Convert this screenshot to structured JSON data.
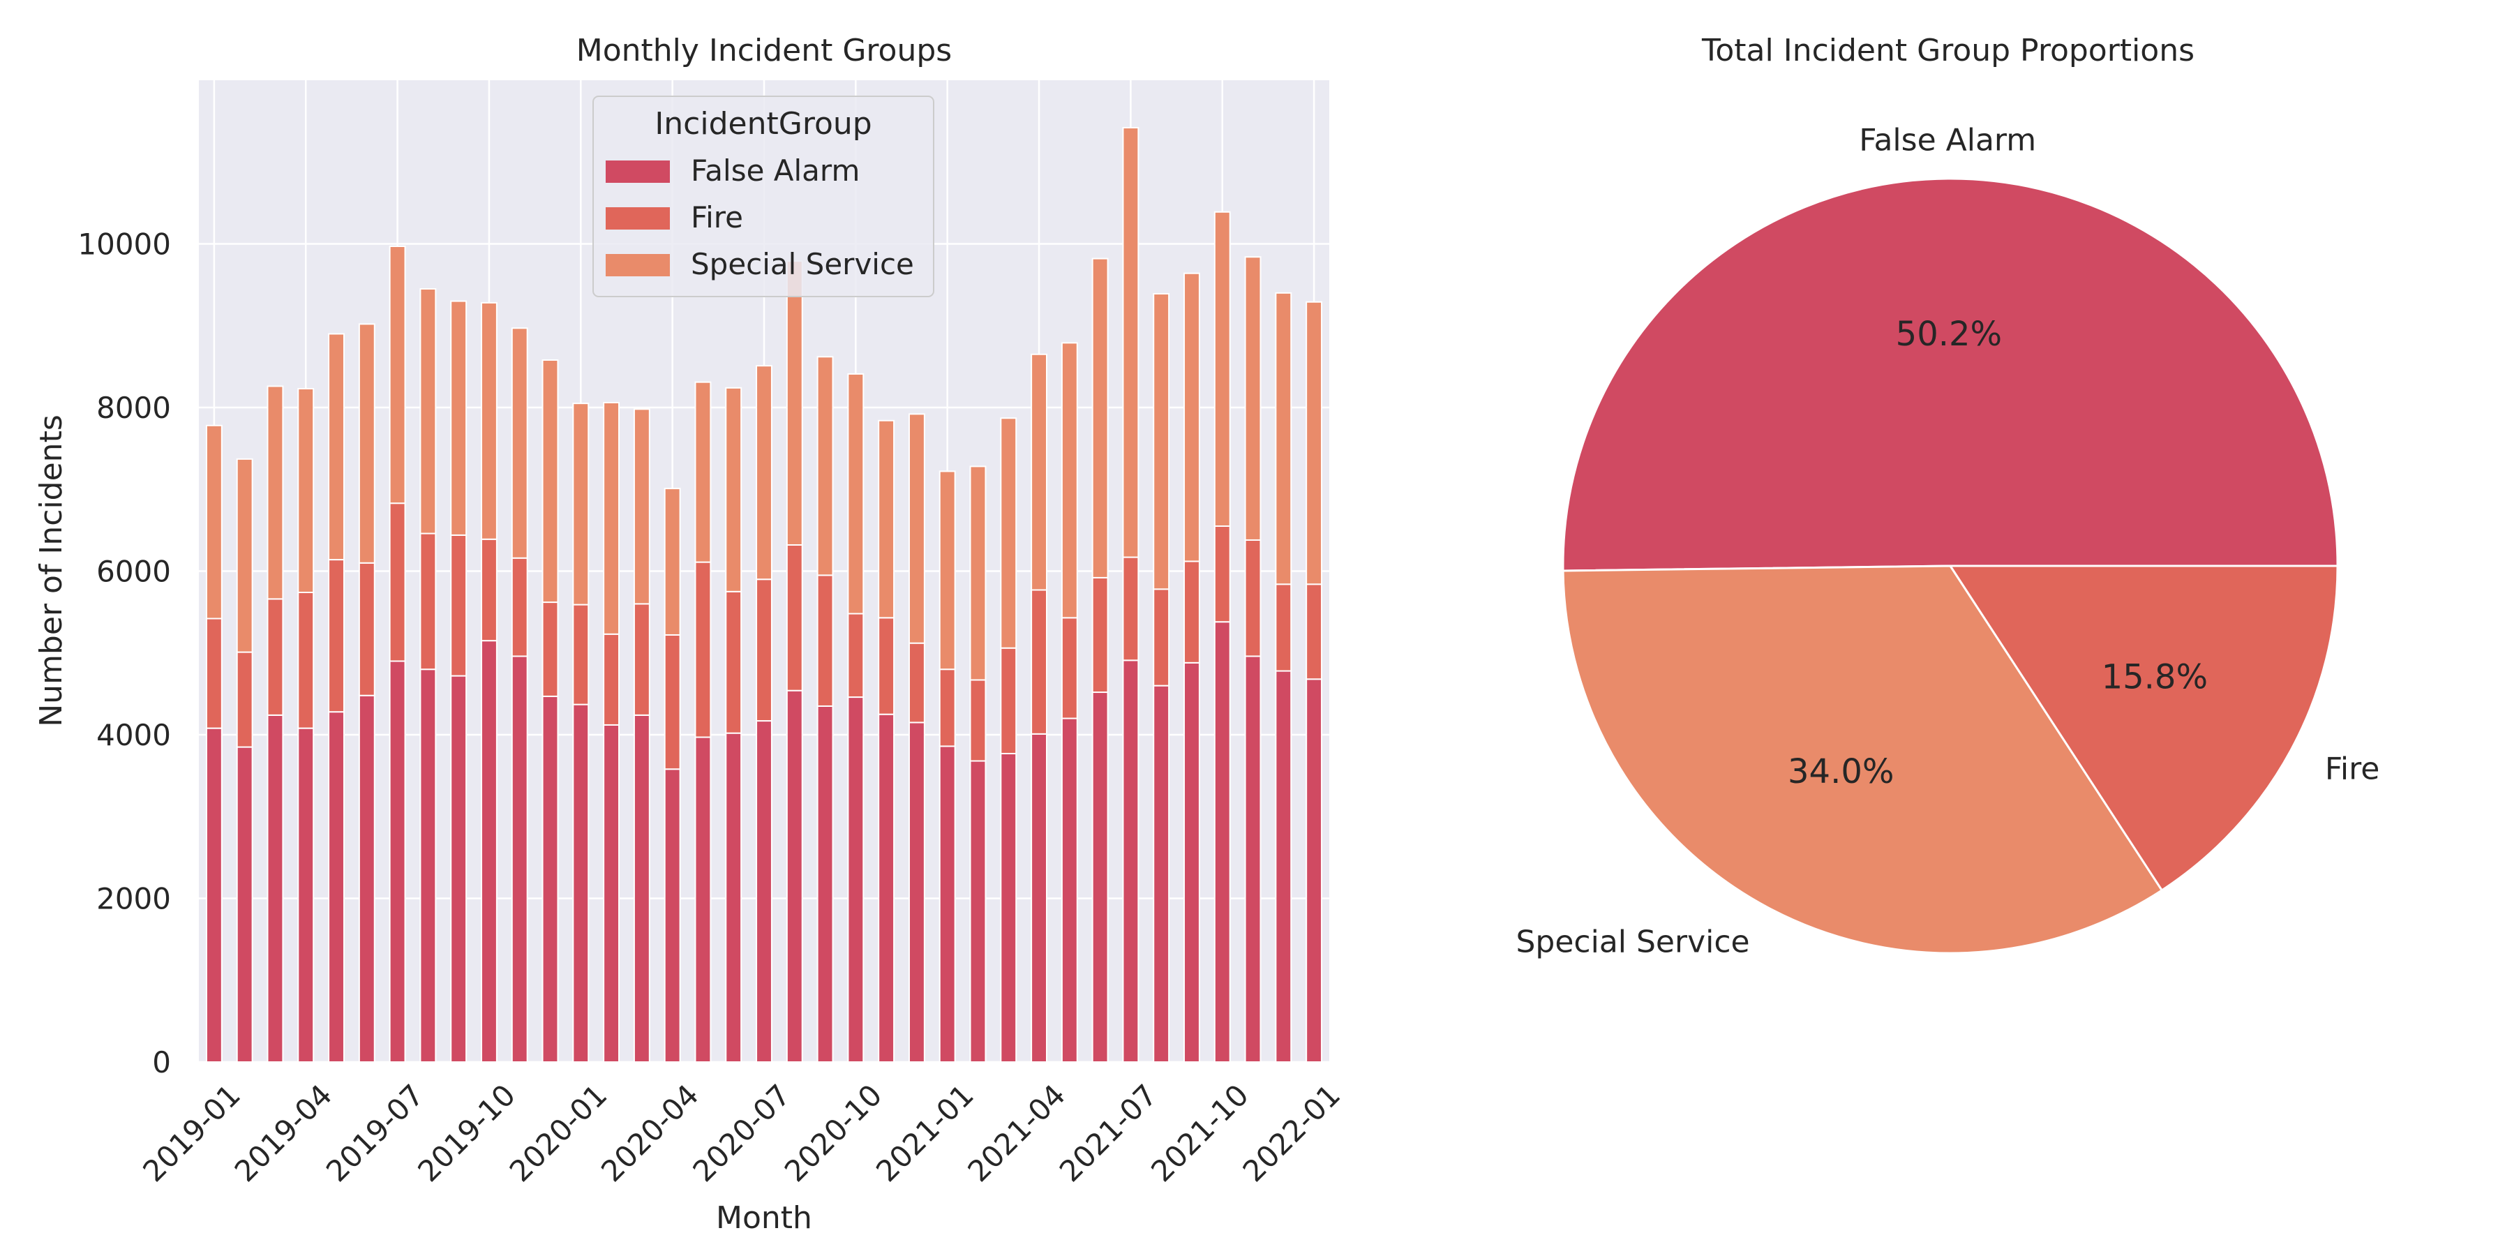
{
  "chart_data": [
    {
      "type": "bar",
      "stacked": true,
      "title": "Monthly Incident Groups",
      "xlabel": "Month",
      "ylabel": "Number of Incidents",
      "ylim": [
        0,
        12000
      ],
      "yticks": [
        0,
        2000,
        4000,
        6000,
        8000,
        10000
      ],
      "grid": true,
      "legend": {
        "title": "IncidentGroup",
        "placement": "top-center"
      },
      "categories": [
        "2019-01",
        "2019-02",
        "2019-03",
        "2019-04",
        "2019-05",
        "2019-06",
        "2019-07",
        "2019-08",
        "2019-09",
        "2019-10",
        "2019-11",
        "2019-12",
        "2020-01",
        "2020-02",
        "2020-03",
        "2020-04",
        "2020-05",
        "2020-06",
        "2020-07",
        "2020-08",
        "2020-09",
        "2020-10",
        "2020-11",
        "2020-12",
        "2021-01",
        "2021-02",
        "2021-03",
        "2021-04",
        "2021-05",
        "2021-06",
        "2021-07",
        "2021-08",
        "2021-09",
        "2021-10",
        "2021-11",
        "2021-12",
        "2022-01"
      ],
      "tick_labels": [
        "2019-01",
        "2019-04",
        "2019-07",
        "2019-10",
        "2020-01",
        "2020-04",
        "2020-07",
        "2020-10",
        "2021-01",
        "2021-04",
        "2021-07",
        "2021-10",
        "2022-01"
      ],
      "tick_category_indices": [
        0,
        3,
        6,
        9,
        12,
        15,
        18,
        21,
        24,
        27,
        30,
        33,
        36
      ],
      "series": [
        {
          "name": "False Alarm",
          "color": "#d04a62",
          "values": [
            4080,
            3850,
            4240,
            4080,
            4280,
            4480,
            4900,
            4800,
            4720,
            5150,
            4960,
            4470,
            4370,
            4120,
            4240,
            3580,
            3970,
            4020,
            4170,
            4540,
            4350,
            4460,
            4250,
            4150,
            3860,
            3680,
            3770,
            4010,
            4200,
            4520,
            4910,
            4600,
            4880,
            5380,
            4960,
            4780,
            4680
          ]
        },
        {
          "name": "Fire",
          "color": "#e0665a",
          "values": [
            1340,
            1160,
            1420,
            1660,
            1860,
            1620,
            1930,
            1660,
            1720,
            1240,
            1200,
            1150,
            1220,
            1110,
            1360,
            1640,
            2140,
            1730,
            1730,
            1780,
            1600,
            1020,
            1180,
            970,
            940,
            990,
            1290,
            1760,
            1230,
            1400,
            1260,
            1180,
            1240,
            1170,
            1420,
            1060,
            1160
          ]
        },
        {
          "name": "Special Service",
          "color": "#e98b6a",
          "values": [
            2360,
            2360,
            2600,
            2490,
            2760,
            2920,
            3140,
            2990,
            2860,
            2890,
            2810,
            2960,
            2460,
            2830,
            2380,
            1790,
            2200,
            2490,
            2610,
            3470,
            2670,
            2930,
            2410,
            2800,
            2420,
            2610,
            2810,
            2880,
            3360,
            3900,
            5250,
            3610,
            3520,
            3840,
            3460,
            3560,
            3450
          ]
        }
      ],
      "bar_top_totals_note": ""
    },
    {
      "type": "pie",
      "title": "Total Incident Group Proportions",
      "slices": [
        {
          "label": "False Alarm",
          "value": 50.2,
          "pct_label": "50.2%",
          "color": "#d04a62"
        },
        {
          "label": "Fire",
          "value": 15.8,
          "pct_label": "15.8%",
          "color": "#e0665a"
        },
        {
          "label": "Special Service",
          "value": 34.0,
          "pct_label": "34.0%",
          "color": "#e98b6a"
        }
      ]
    }
  ]
}
